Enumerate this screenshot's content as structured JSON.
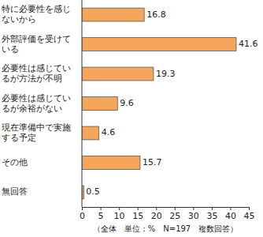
{
  "chart_data": {
    "type": "bar",
    "orientation": "horizontal",
    "categories": [
      "特に必要性を感じないから",
      "外部評価を受けている",
      "必要性は感じているが方法が不明",
      "必要性は感じているが余裕がない",
      "現在準備中で実施する予定",
      "その他",
      "無回答"
    ],
    "values": [
      16.8,
      41.6,
      19.3,
      9.6,
      4.6,
      15.7,
      0.5
    ],
    "color": "#f6a65c",
    "xlim": [
      0,
      45
    ],
    "xticks": [
      0,
      5,
      10,
      15,
      20,
      25,
      30,
      35,
      40,
      45
    ],
    "data_labels": true,
    "annotation": "（全体　単位：%　N=197　複数回答）"
  }
}
